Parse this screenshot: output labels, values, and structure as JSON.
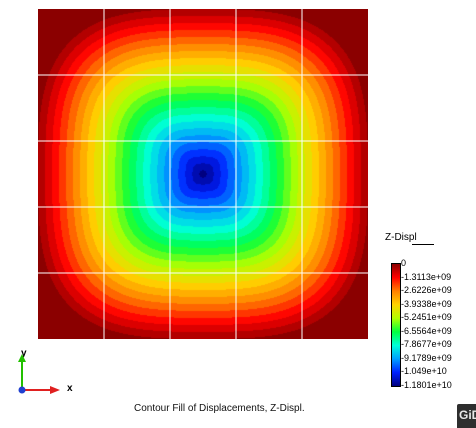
{
  "legend": {
    "title": "Z-Displ",
    "labels": [
      "0",
      "-1.3113e+09",
      "-2.6226e+09",
      "-3.9338e+09",
      "-5.2451e+09",
      "-6.5564e+09",
      "-7.8677e+09",
      "-9.1789e+09",
      "-1.049e+10",
      "-1.1801e+10"
    ],
    "colors": [
      "#8b0000",
      "#ff0000",
      "#ff7f00",
      "#ffd200",
      "#b2ff00",
      "#00ff40",
      "#00ffd8",
      "#00a0ff",
      "#0020ff",
      "#000080"
    ]
  },
  "axes": {
    "y_label": "y",
    "x_label": "x",
    "y_color": "#22c000",
    "x_color": "#e02020",
    "z_color": "#2040d0"
  },
  "caption": "Contour Fill of Displacements, Z-Displ.",
  "logo": {
    "text": "GiD"
  },
  "plot": {
    "grid_divisions": 5,
    "grid_color": "#ffffff",
    "outer_color": "#8b0000",
    "inner_color": "#000080",
    "shape": "rounded-square contours"
  }
}
